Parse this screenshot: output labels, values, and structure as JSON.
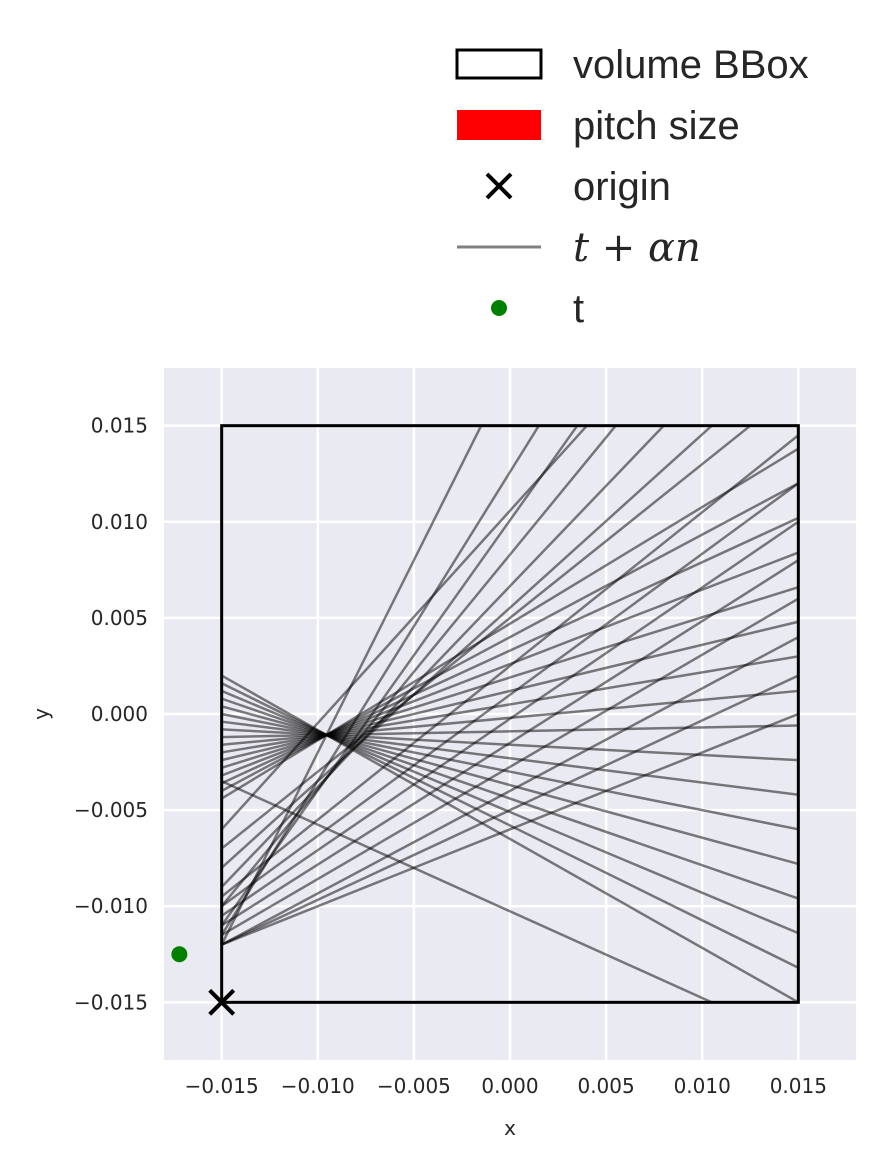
{
  "chart_data": {
    "type": "line",
    "xlabel": "x",
    "ylabel": "y",
    "xlim": [
      -0.018,
      0.018
    ],
    "ylim": [
      -0.018,
      0.018
    ],
    "xticks": [
      -0.015,
      -0.01,
      -0.005,
      0.0,
      0.005,
      0.01,
      0.015
    ],
    "yticks": [
      -0.015,
      -0.01,
      -0.005,
      0.0,
      0.005,
      0.01,
      0.015
    ],
    "xtick_labels": [
      "−0.015",
      "−0.010",
      "−0.005",
      "0.000",
      "0.005",
      "0.010",
      "0.015"
    ],
    "ytick_labels": [
      "−0.015",
      "−0.010",
      "−0.005",
      "0.000",
      "0.005",
      "0.010",
      "0.015"
    ],
    "grid": true,
    "legend_position": "top",
    "legend": [
      {
        "label": "volume BBox",
        "marker": "rect-outline",
        "color": "#000000"
      },
      {
        "label": "pitch size",
        "marker": "rect-filled",
        "color": "#ff0000"
      },
      {
        "label": "origin",
        "marker": "x",
        "color": "#000000"
      },
      {
        "label": "t + αn",
        "marker": "line",
        "color": "#808080"
      },
      {
        "label": "t",
        "marker": "dot",
        "color": "#008000"
      }
    ],
    "bbox": {
      "x0": -0.015,
      "y0": -0.015,
      "x1": 0.015,
      "y1": 0.015
    },
    "origin": {
      "x": -0.015,
      "y": -0.015
    },
    "t_point": {
      "x": -0.0172,
      "y": -0.0125
    },
    "rays": [
      {
        "x0": -0.015,
        "y0": 0.002,
        "x1": 0.015,
        "y1": -0.015
      },
      {
        "x0": -0.015,
        "y0": 0.0016,
        "x1": 0.015,
        "y1": -0.0132
      },
      {
        "x0": -0.015,
        "y0": 0.0012,
        "x1": 0.015,
        "y1": -0.0114
      },
      {
        "x0": -0.015,
        "y0": 0.0008,
        "x1": 0.015,
        "y1": -0.0096
      },
      {
        "x0": -0.015,
        "y0": 0.0004,
        "x1": 0.015,
        "y1": -0.0078
      },
      {
        "x0": -0.015,
        "y0": 0.0,
        "x1": 0.015,
        "y1": -0.006
      },
      {
        "x0": -0.015,
        "y0": -0.0004,
        "x1": 0.015,
        "y1": -0.0042
      },
      {
        "x0": -0.015,
        "y0": -0.0008,
        "x1": 0.015,
        "y1": -0.0024
      },
      {
        "x0": -0.015,
        "y0": -0.0012,
        "x1": 0.015,
        "y1": -0.0006
      },
      {
        "x0": -0.015,
        "y0": -0.0016,
        "x1": 0.015,
        "y1": 0.0012
      },
      {
        "x0": -0.015,
        "y0": -0.002,
        "x1": 0.015,
        "y1": 0.003
      },
      {
        "x0": -0.015,
        "y0": -0.0024,
        "x1": 0.015,
        "y1": 0.0048
      },
      {
        "x0": -0.015,
        "y0": -0.0028,
        "x1": 0.015,
        "y1": 0.0066
      },
      {
        "x0": -0.015,
        "y0": -0.0032,
        "x1": 0.015,
        "y1": 0.0084
      },
      {
        "x0": -0.015,
        "y0": -0.0036,
        "x1": 0.015,
        "y1": 0.0102
      },
      {
        "x0": -0.015,
        "y0": -0.004,
        "x1": 0.015,
        "y1": 0.012
      },
      {
        "x0": -0.015,
        "y0": -0.0044,
        "x1": 0.015,
        "y1": 0.0138
      },
      {
        "x0": -0.015,
        "y0": -0.007,
        "x1": 0.0125,
        "y1": 0.015
      },
      {
        "x0": -0.015,
        "y0": -0.009,
        "x1": 0.008,
        "y1": 0.015
      },
      {
        "x0": -0.015,
        "y0": -0.011,
        "x1": 0.0035,
        "y1": 0.015
      },
      {
        "x0": -0.015,
        "y0": -0.012,
        "x1": -0.0015,
        "y1": 0.015
      },
      {
        "x0": -0.015,
        "y0": -0.0095,
        "x1": 0.015,
        "y1": 0.0145
      },
      {
        "x0": -0.015,
        "y0": -0.01,
        "x1": 0.015,
        "y1": 0.012
      },
      {
        "x0": -0.015,
        "y0": -0.0105,
        "x1": 0.015,
        "y1": 0.01
      },
      {
        "x0": -0.015,
        "y0": -0.011,
        "x1": 0.015,
        "y1": 0.008
      },
      {
        "x0": -0.015,
        "y0": -0.0115,
        "x1": 0.015,
        "y1": 0.006
      },
      {
        "x0": -0.015,
        "y0": -0.012,
        "x1": 0.015,
        "y1": 0.004
      },
      {
        "x0": -0.015,
        "y0": -0.012,
        "x1": 0.015,
        "y1": 0.002
      },
      {
        "x0": -0.015,
        "y0": -0.012,
        "x1": 0.015,
        "y1": 0.0
      },
      {
        "x0": -0.015,
        "y0": -0.008,
        "x1": 0.0105,
        "y1": 0.015
      },
      {
        "x0": -0.015,
        "y0": -0.01,
        "x1": 0.0055,
        "y1": 0.015
      },
      {
        "x0": -0.015,
        "y0": -0.0115,
        "x1": 0.0015,
        "y1": 0.015
      },
      {
        "x0": -0.015,
        "y0": -0.0035,
        "x1": 0.0105,
        "y1": -0.015
      },
      {
        "x0": -0.015,
        "y0": -0.006,
        "x1": 0.004,
        "y1": 0.015
      }
    ]
  }
}
